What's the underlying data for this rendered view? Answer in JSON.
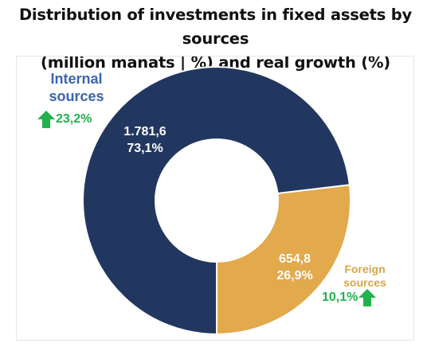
{
  "title_line1": "Distribution of investments in fixed assets by sources",
  "title_line2": "(million manats | %) and real growth (%)",
  "colors": {
    "internal": "#22375f",
    "foreign": "#e2a94d",
    "growth_arrow": "#22b24c"
  },
  "chart_data": {
    "type": "pie",
    "donut": true,
    "title": "Distribution of investments in fixed assets by sources (million manats | %) and real growth (%)",
    "slices": [
      {
        "name": "Internal sources",
        "value": 1781.6,
        "value_label": "1.781,6",
        "percent": 73.1,
        "percent_label": "73,1%",
        "growth_label": "23,2%",
        "color": "#22375f"
      },
      {
        "name": "Foreign sources",
        "value": 654.8,
        "value_label": "654,8",
        "percent": 26.9,
        "percent_label": "26,9%",
        "growth_label": "10,1%",
        "color": "#e2a94d"
      }
    ]
  },
  "labels": {
    "internal_line1": "Internal",
    "internal_line2": "sources",
    "foreign_line1": "Foreign",
    "foreign_line2": "sources"
  },
  "icons": {
    "growth": "up-arrow-icon"
  }
}
